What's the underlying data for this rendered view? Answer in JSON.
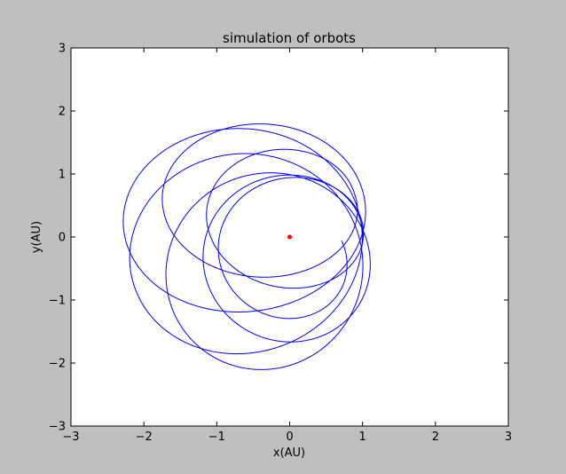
{
  "chart_data": {
    "type": "line",
    "title": "simulation of orbots",
    "xlabel": "x(AU)",
    "ylabel": "y(AU)",
    "xlim": [
      -3,
      3
    ],
    "ylim": [
      -3,
      3
    ],
    "xticks": [
      -3,
      -2,
      -1,
      0,
      1,
      2,
      3
    ],
    "yticks": [
      -3,
      -2,
      -1,
      0,
      1,
      2,
      3
    ],
    "xtick_labels": [
      "−3",
      "−2",
      "−1",
      "0",
      "1",
      "2",
      "3"
    ],
    "ytick_labels": [
      "−3",
      "−2",
      "−1",
      "0",
      "1",
      "2",
      "3"
    ],
    "grid": false,
    "series": [
      {
        "kind": "orbit",
        "color": "#0000ff",
        "start": [
          1.0,
          0.0
        ],
        "end": [
          0.6,
          -1.95
        ],
        "loops": 7,
        "drift_radius": 0.55,
        "mean_radius": 1.7,
        "radius_amplitude": 0.55
      },
      {
        "kind": "point",
        "color": "#ff0000",
        "x": 0.0,
        "y": 0.0
      }
    ]
  }
}
